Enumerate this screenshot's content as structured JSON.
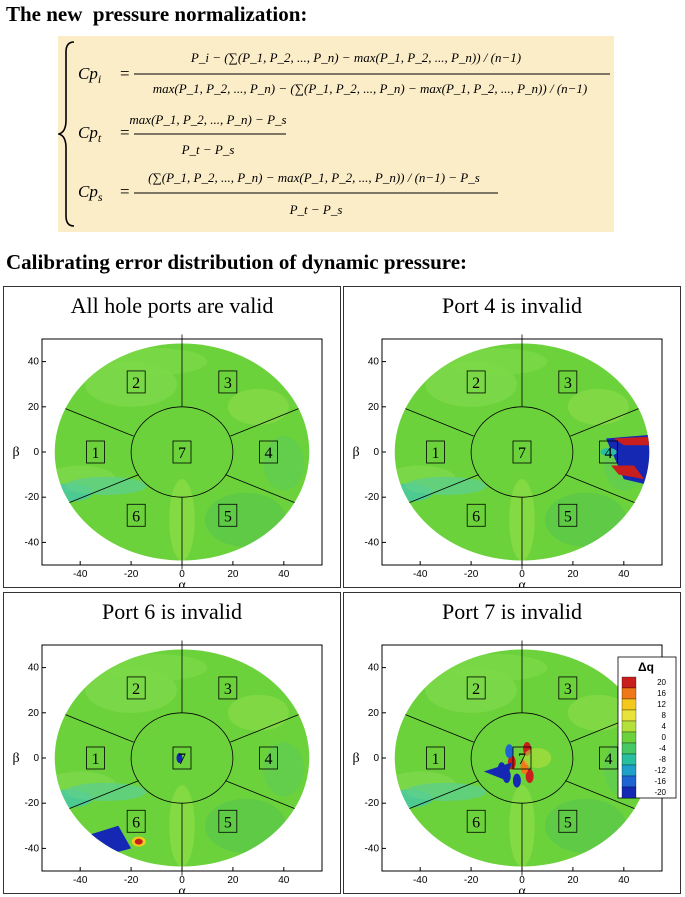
{
  "heading1": "The new  pressure normalization:",
  "heading2": "Calibrating error distribution of dynamic pressure:",
  "equations": {
    "cpi_lhs": "Cp",
    "cpi_sub": "i",
    "cpt_lhs": "Cp",
    "cpt_sub": "t",
    "cps_lhs": "Cp",
    "cps_sub": "s",
    "cpi_num": "P_i − (∑(P_1, P_2, ..., P_n) − max(P_1, P_2, ..., P_n)) / (n−1)",
    "cpi_den": "max(P_1, P_2, ..., P_n) − (∑(P_1, P_2, ..., P_n) − max(P_1, P_2, ..., P_n)) / (n−1)",
    "cpt_num": "max(P_1, P_2, ..., P_n) − P_s",
    "cpt_den": "P_t − P_s",
    "cps_num": "(∑(P_1, P_2, ..., P_n) − max(P_1, P_2, ..., P_n)) / (n−1) − P_s",
    "cps_den": "P_t − P_s"
  },
  "panels": [
    {
      "title": "All hole ports are valid",
      "invalid_port": null
    },
    {
      "title": "Port 4 is invalid",
      "invalid_port": 4
    },
    {
      "title": "Port 6 is invalid",
      "invalid_port": 6
    },
    {
      "title": "Port 7 is invalid",
      "invalid_port": 7
    }
  ],
  "port_labels": [
    "1",
    "2",
    "3",
    "4",
    "5",
    "6",
    "7"
  ],
  "axes": {
    "xlabel": "α",
    "ylabel": "β",
    "xticks": [
      "-40",
      "-20",
      "0",
      "20",
      "40"
    ],
    "yticks": [
      "40",
      "20",
      "0",
      "-20",
      "-40"
    ],
    "xlim": [
      -55,
      55
    ],
    "ylim": [
      -50,
      50
    ]
  },
  "legend": {
    "title": "Δq",
    "levels": [
      "20",
      "16",
      "12",
      "8",
      "4",
      "0",
      "-4",
      "-8",
      "-12",
      "-16",
      "-20"
    ],
    "colors": [
      "#c81e1e",
      "#f07818",
      "#f5c81e",
      "#e8e23c",
      "#b4e03a",
      "#6cd23c",
      "#46c864",
      "#28bea0",
      "#1ea0c8",
      "#1e64d2",
      "#1428b4"
    ]
  },
  "colors": {
    "equation_bg": "#fbedc8",
    "field_green": "#6cd23c"
  }
}
